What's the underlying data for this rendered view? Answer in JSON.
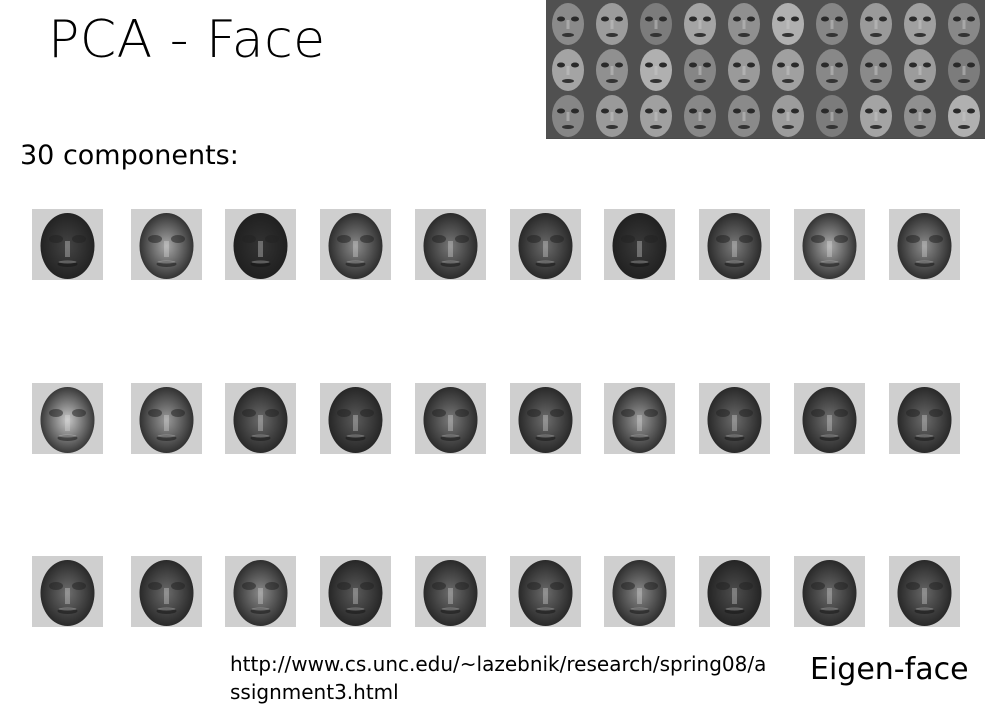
{
  "slide": {
    "title": "PCA - Face",
    "subtitle": "30 components:",
    "source": "http://www.cs.unc.edu/~lazebnik/research/spring08/assignment3.html",
    "label": "Eigen-face"
  },
  "dataset_image": {
    "name": "training-faces-photo",
    "rows": 3,
    "cols": 10
  },
  "eigenfaces": {
    "count": 30,
    "rows": 3,
    "cols": 10,
    "tones": [
      [
        "#444444",
        "#a8a8a8",
        "#333333",
        "#8a8a8a",
        "#777777",
        "#6a6a6a",
        "#3a3a3a",
        "#7a7a7a",
        "#aaaaaa",
        "#8c8c8c"
      ],
      [
        "#c8c8c8",
        "#9a9a9a",
        "#6a6a6a",
        "#5a5a5a",
        "#7a7a7a",
        "#6c6c6c",
        "#9a9a9a",
        "#6a6a6a",
        "#707070",
        "#6a6a6a"
      ],
      [
        "#6e6e6e",
        "#6a6a6a",
        "#8a8a8a",
        "#5a5a5a",
        "#6c6c6c",
        "#6a6a6a",
        "#8a8a8a",
        "#4e4e4e",
        "#6a6a6a",
        "#666666"
      ]
    ]
  }
}
